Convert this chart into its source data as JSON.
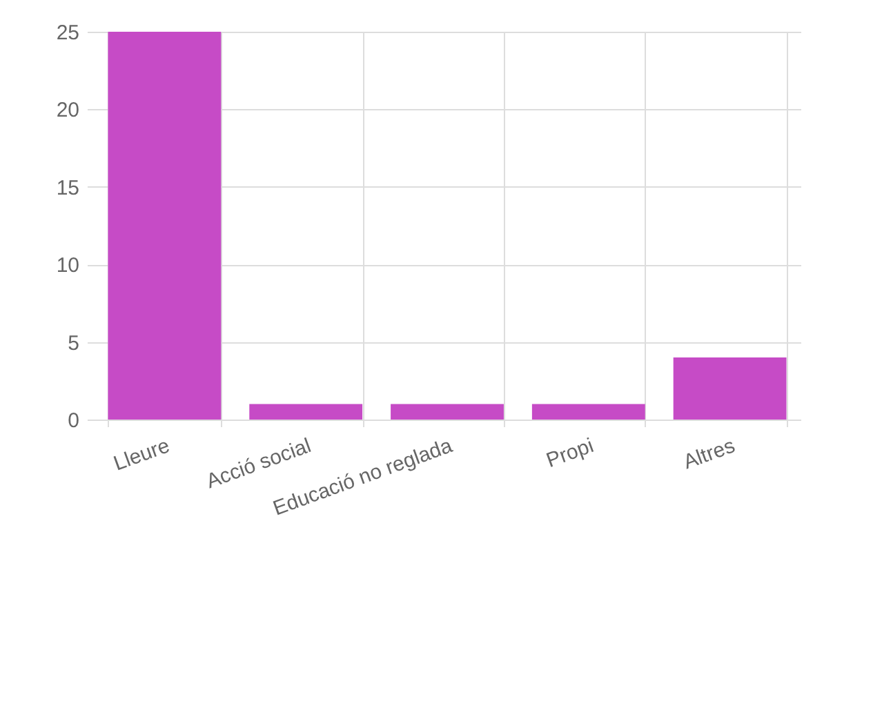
{
  "chart_data": {
    "type": "bar",
    "categories": [
      "Lleure",
      "Acció social",
      "Educació no reglada",
      "Propi",
      "Altres"
    ],
    "values": [
      25,
      1,
      1,
      1,
      4
    ],
    "color": "#c64bc6",
    "ylim": [
      0,
      25
    ],
    "yticks": [
      0,
      5,
      10,
      15,
      20,
      25
    ],
    "grid": true
  }
}
